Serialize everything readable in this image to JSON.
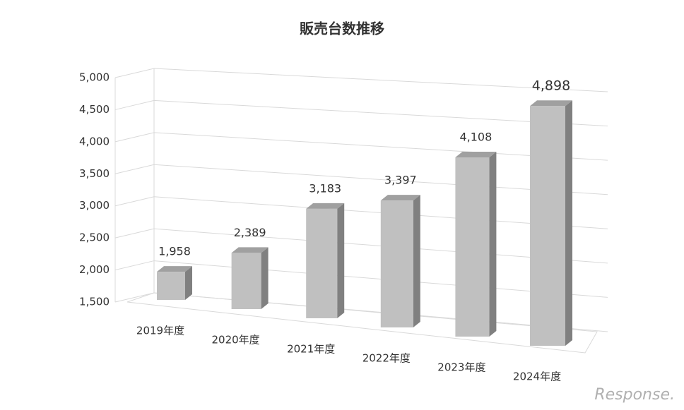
{
  "chart_data": {
    "type": "bar3d",
    "title": "販売台数推移",
    "categories": [
      "2019年度",
      "2020年度",
      "2021年度",
      "2022年度",
      "2023年度",
      "2024年度"
    ],
    "values": [
      1958,
      2389,
      3183,
      3397,
      4108,
      4898
    ],
    "value_labels": [
      "1,958",
      "2,389",
      "3,183",
      "3,397",
      "4,108",
      "4,898"
    ],
    "color": "#c0c0c0",
    "ylim": [
      1500,
      5000
    ],
    "yticks": [
      {
        "value": 1500,
        "label": "1,500"
      },
      {
        "value": 2000,
        "label": "2,000"
      },
      {
        "value": 2500,
        "label": "2,500"
      },
      {
        "value": 3000,
        "label": "3,000"
      },
      {
        "value": 3500,
        "label": "3,500"
      },
      {
        "value": 4000,
        "label": "4,000"
      },
      {
        "value": 4500,
        "label": "4,500"
      },
      {
        "value": 5000,
        "label": "5,000"
      }
    ],
    "grid": true
  },
  "watermark": "Response."
}
